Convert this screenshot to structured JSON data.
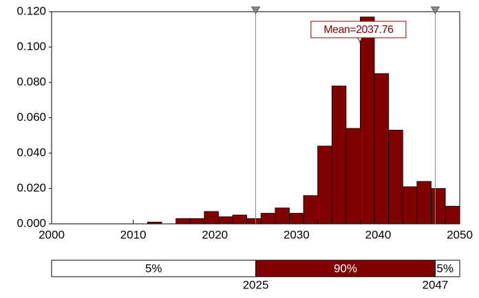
{
  "chart_data": {
    "type": "histogram",
    "bins": [
      2011.75,
      2013.49,
      2015.23,
      2016.96,
      2018.7,
      2020.44,
      2022.18,
      2023.91,
      2025.65,
      2027.39,
      2029.13,
      2030.86,
      2032.6,
      2034.34,
      2036.08,
      2037.81,
      2039.55,
      2041.29,
      2043.03,
      2044.76,
      2046.5,
      2048.24,
      2050
    ],
    "values": [
      0.001,
      0,
      0.003,
      0.003,
      0.007,
      0.004,
      0.005,
      0.003,
      0.006,
      0.009,
      0.006,
      0.016,
      0.044,
      0.078,
      0.054,
      0.117,
      0.085,
      0.053,
      0.021,
      0.024,
      0.02,
      0.01
    ],
    "color": "#800000",
    "xlim": [
      2000,
      2050
    ],
    "xticks": [
      2000,
      2010,
      2020,
      2030,
      2040,
      2050
    ],
    "ylim": [
      0,
      0.12
    ],
    "yticks": [
      {
        "value": 0,
        "label": "0.000"
      },
      {
        "value": 0.02,
        "label": "0.020"
      },
      {
        "value": 0.04,
        "label": "0.040"
      },
      {
        "value": 0.06,
        "label": "0.060"
      },
      {
        "value": 0.08,
        "label": "0.080"
      },
      {
        "value": 0.1,
        "label": "0.100"
      },
      {
        "value": 0.12,
        "label": "0.120"
      }
    ],
    "mean": 2037.76,
    "mean_label": "Mean=2037.76",
    "delimiters": [
      2025,
      2047
    ],
    "delimiter_percents": [
      5,
      90,
      5
    ],
    "delimiter_percent_labels": [
      "5%",
      "90%",
      "5%"
    ]
  }
}
